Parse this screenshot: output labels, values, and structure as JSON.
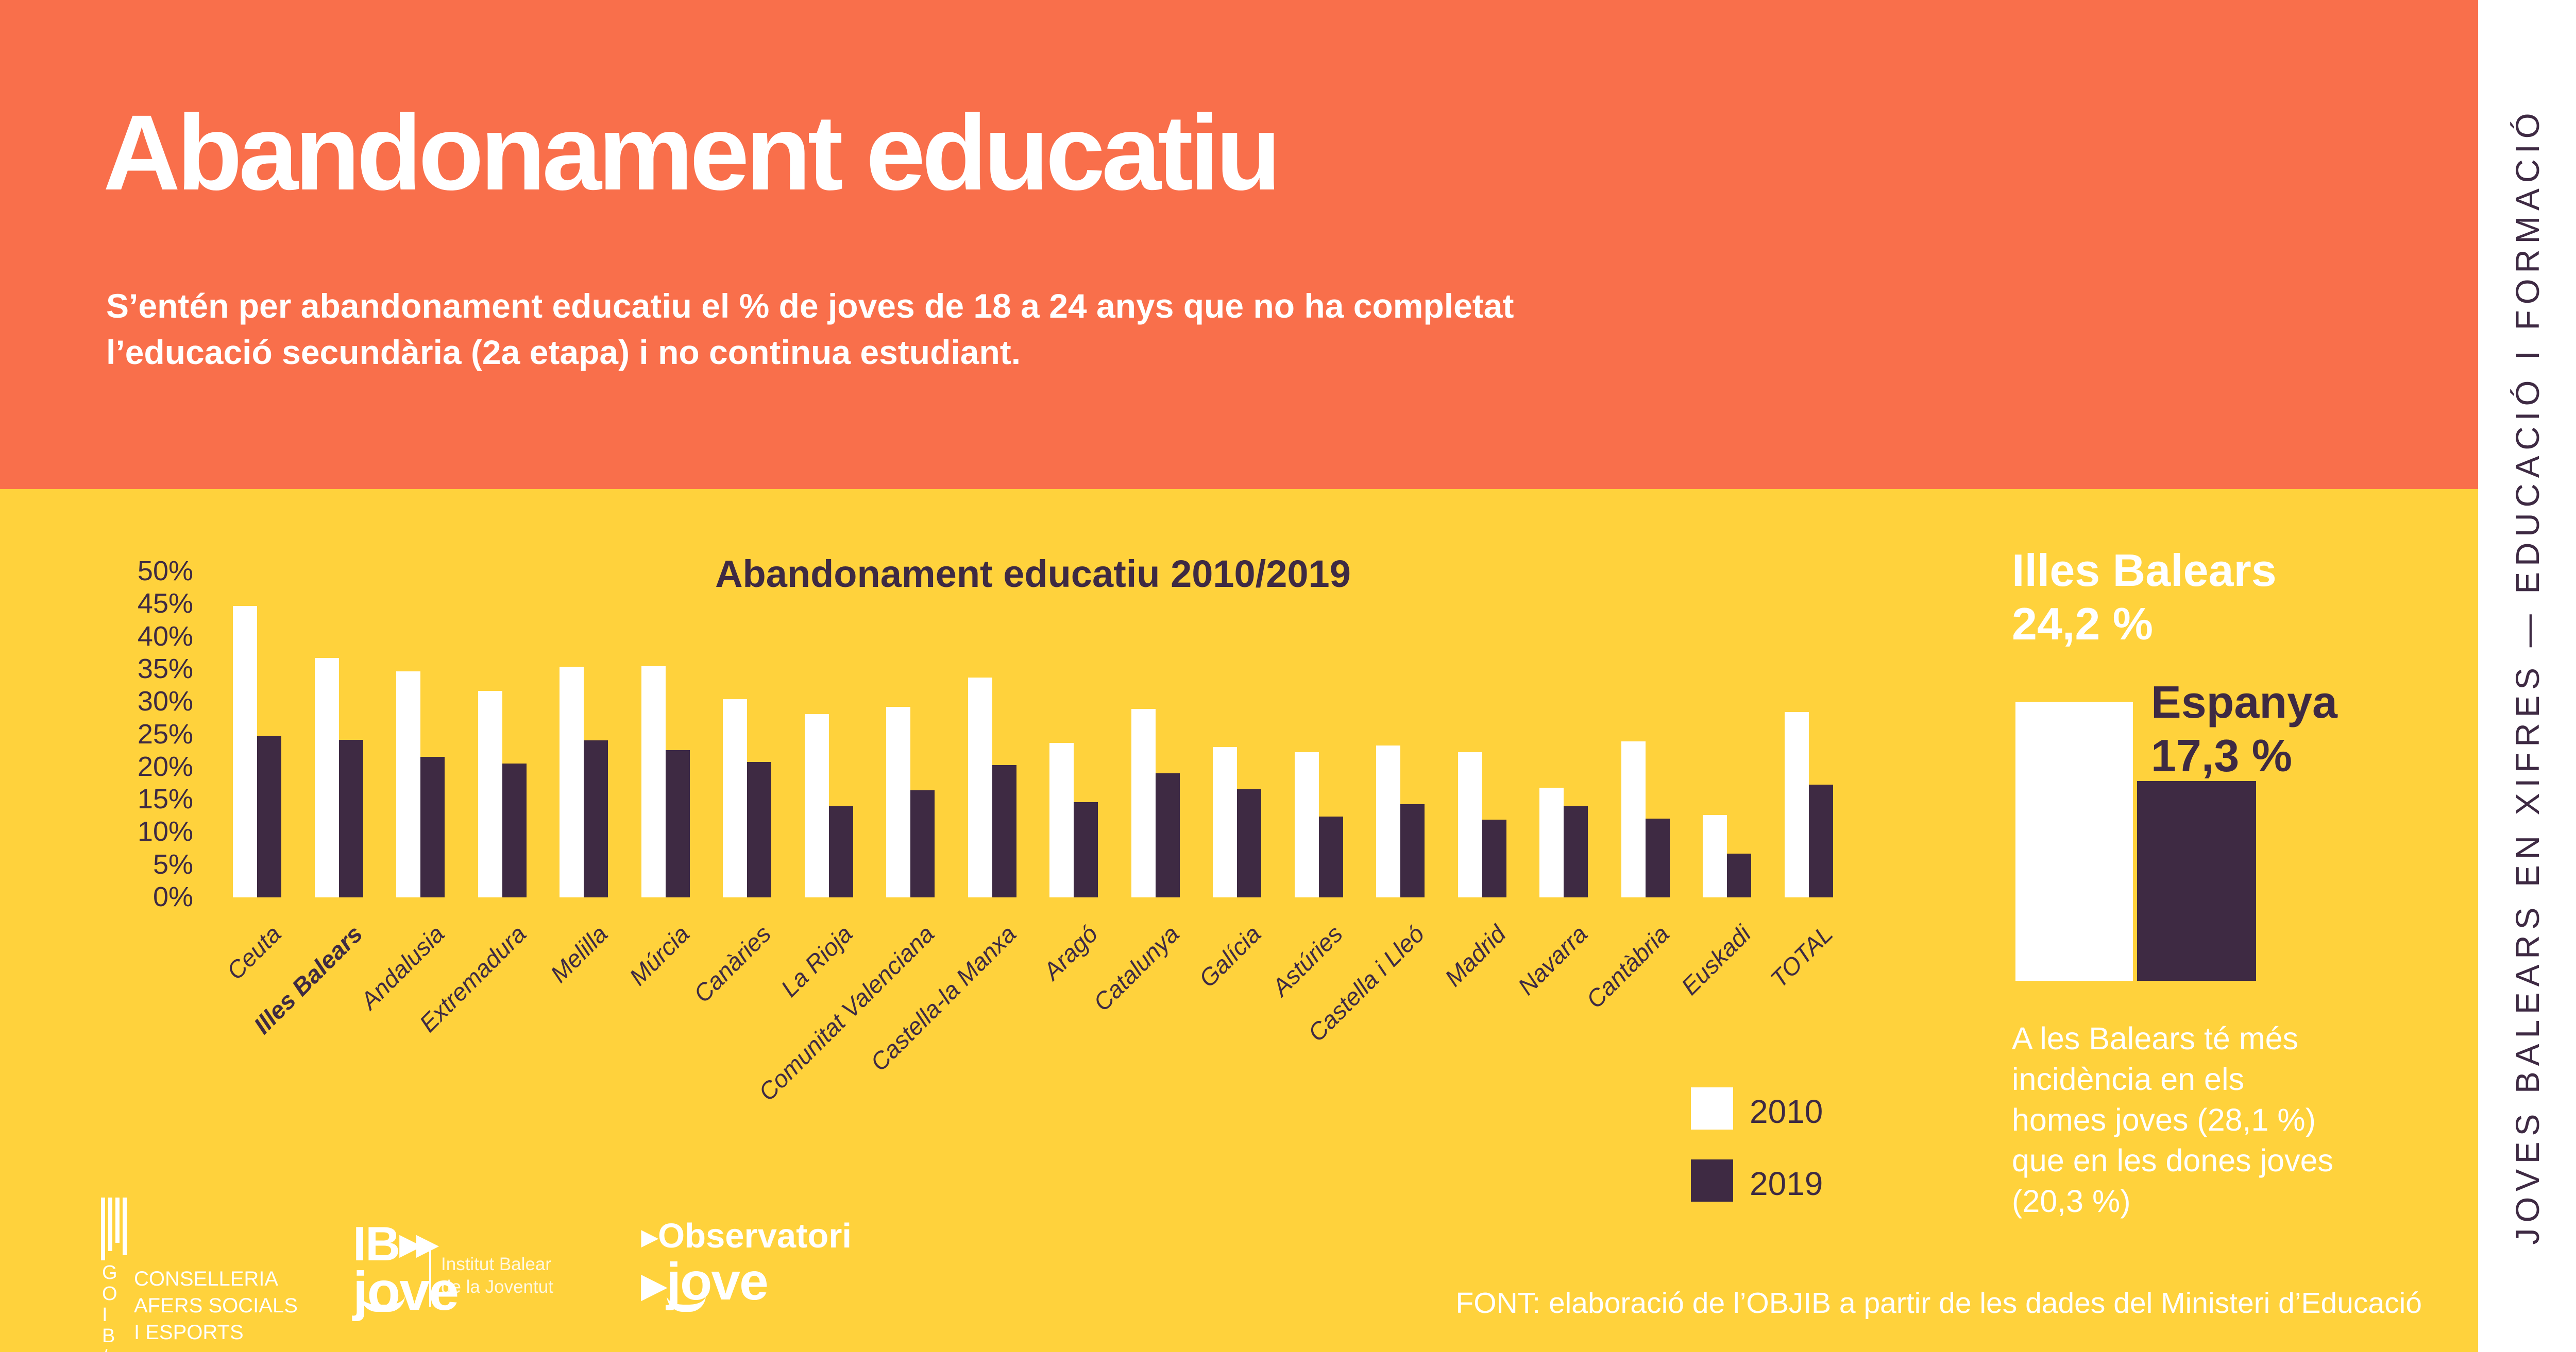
{
  "colors": {
    "header_background": "#F96F4B",
    "body_background": "#FFD23C",
    "dark_purple": "#3E2A43",
    "white": "#FFFFFF",
    "series_2010": "#FFFFFF",
    "series_2019": "#3E2A43"
  },
  "header": {
    "title": "Abandonament educatiu",
    "subtitle_line1": "S’entén per abandonament educatiu el % de joves de 18 a 24 anys que no ha completat",
    "subtitle_line2": "l’educació secundària (2a etapa) i no continua estudiant."
  },
  "chart_data": {
    "type": "bar",
    "title": "Abandonament educatiu 2010/2019",
    "categories": [
      "Ceuta",
      "Illes Balears",
      "Andalusia",
      "Extremadura",
      "Melilla",
      "Múrcia",
      "Canàries",
      "La Rioja",
      "Comunitat Valenciana",
      "Castella-la Manxa",
      "Aragó",
      "Catalunya",
      "Galícia",
      "Astúries",
      "Castella i Lleó",
      "Madrid",
      "Navarra",
      "Cantàbria",
      "Euskadi",
      "TOTAL"
    ],
    "series": [
      {
        "name": "2010",
        "values": [
          44.7,
          36.7,
          34.7,
          31.7,
          35.4,
          35.5,
          30.4,
          28.1,
          29.2,
          33.7,
          23.7,
          28.9,
          23.1,
          22.3,
          23.3,
          22.3,
          16.8,
          23.9,
          12.6,
          28.4
        ]
      },
      {
        "name": "2019",
        "values": [
          24.7,
          24.2,
          21.6,
          20.5,
          24.1,
          22.6,
          20.8,
          14.0,
          16.4,
          20.3,
          14.6,
          19.0,
          16.6,
          12.4,
          14.3,
          11.9,
          14.0,
          12.1,
          6.7,
          17.3
        ]
      }
    ],
    "bold_category": "Illes Balears",
    "ylim": [
      0,
      50
    ],
    "yticks": [
      50,
      45,
      40,
      35,
      30,
      25,
      20,
      15,
      10,
      5,
      0
    ],
    "ytick_suffix": "%",
    "grid": false,
    "legend_position": "bottom-right"
  },
  "legend": {
    "items": [
      {
        "label": "2010",
        "color": "#FFFFFF"
      },
      {
        "label": "2019",
        "color": "#3E2A43"
      }
    ]
  },
  "highlight": {
    "region_name": "Illes Balears",
    "region_value_label": "24,2 %",
    "region_value": 24.2,
    "country_name": "Espanya",
    "country_value_label": "17,3 %",
    "country_value": 17.3,
    "note_lines": [
      "A les Balears té més",
      "incidència en els",
      "homes joves (28,1 %)",
      "que en les dones joves",
      "(20,3 %)"
    ]
  },
  "footer": {
    "goib_letters": "G\nO\nI\nB\n/",
    "goib_department": "CONSELLERIA\nAFERS SOCIALS\nI ESPORTS",
    "ibjove_name": "IB",
    "ibjove_sub": "jove",
    "ibjove_institute": "Institut Balear\nde la Joventut",
    "observatori_line1": "Observatori",
    "observatori_line2": "jove",
    "source_text": "FONT: elaboració de l’OBJIB a partir de les dades del Ministeri d’Educació"
  },
  "sidebar": {
    "vertical_text": "JOVES BALEARS EN XIFRES — EDUCACIÓ I FORMACIÓ"
  }
}
